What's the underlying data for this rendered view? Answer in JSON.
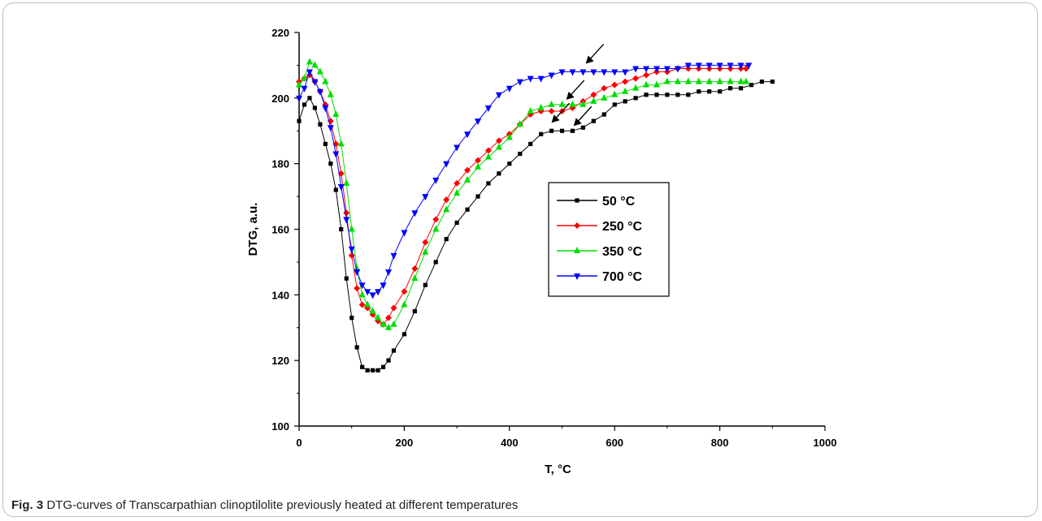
{
  "caption": {
    "label": "Fig. 3",
    "text": "DTG-curves of Transcarpathian clinoptilolite previously heated at different temperatures"
  },
  "chart_data": {
    "type": "line",
    "title": "",
    "xlabel": "T, °C",
    "ylabel": "DTG, a.u.",
    "xlim": [
      0,
      1000
    ],
    "ylim": [
      100,
      220
    ],
    "xticks": [
      0,
      200,
      400,
      600,
      800,
      1000
    ],
    "yticks": [
      100,
      120,
      140,
      160,
      180,
      200,
      220
    ],
    "grid": false,
    "legend_position": "center-right",
    "series": [
      {
        "name": "50 °C",
        "color": "#000000",
        "marker": "square",
        "points": [
          [
            0,
            193
          ],
          [
            10,
            198
          ],
          [
            20,
            200
          ],
          [
            30,
            197
          ],
          [
            40,
            192
          ],
          [
            50,
            186
          ],
          [
            60,
            180
          ],
          [
            70,
            172
          ],
          [
            80,
            160
          ],
          [
            90,
            145
          ],
          [
            100,
            133
          ],
          [
            110,
            124
          ],
          [
            120,
            118
          ],
          [
            130,
            117
          ],
          [
            140,
            117
          ],
          [
            150,
            117
          ],
          [
            160,
            118
          ],
          [
            170,
            120
          ],
          [
            180,
            123
          ],
          [
            200,
            128
          ],
          [
            220,
            135
          ],
          [
            240,
            143
          ],
          [
            260,
            150
          ],
          [
            280,
            157
          ],
          [
            300,
            162
          ],
          [
            320,
            166
          ],
          [
            340,
            170
          ],
          [
            360,
            174
          ],
          [
            380,
            177
          ],
          [
            400,
            180
          ],
          [
            420,
            183
          ],
          [
            440,
            186
          ],
          [
            460,
            189
          ],
          [
            480,
            190
          ],
          [
            500,
            190
          ],
          [
            520,
            190
          ],
          [
            540,
            191
          ],
          [
            560,
            193
          ],
          [
            580,
            195
          ],
          [
            600,
            198
          ],
          [
            620,
            199
          ],
          [
            640,
            200
          ],
          [
            660,
            201
          ],
          [
            680,
            201
          ],
          [
            700,
            201
          ],
          [
            720,
            201
          ],
          [
            740,
            201
          ],
          [
            760,
            202
          ],
          [
            780,
            202
          ],
          [
            800,
            202
          ],
          [
            820,
            203
          ],
          [
            840,
            203
          ],
          [
            860,
            204
          ],
          [
            880,
            205
          ],
          [
            900,
            205
          ]
        ]
      },
      {
        "name": "250 °C",
        "color": "#ff0000",
        "marker": "diamond",
        "points": [
          [
            0,
            205
          ],
          [
            10,
            206
          ],
          [
            20,
            207
          ],
          [
            30,
            205
          ],
          [
            40,
            202
          ],
          [
            50,
            198
          ],
          [
            60,
            193
          ],
          [
            70,
            186
          ],
          [
            80,
            177
          ],
          [
            90,
            165
          ],
          [
            100,
            152
          ],
          [
            110,
            142
          ],
          [
            120,
            137
          ],
          [
            130,
            136
          ],
          [
            140,
            134
          ],
          [
            150,
            132
          ],
          [
            160,
            131
          ],
          [
            170,
            133
          ],
          [
            180,
            136
          ],
          [
            200,
            141
          ],
          [
            220,
            148
          ],
          [
            240,
            156
          ],
          [
            260,
            163
          ],
          [
            280,
            169
          ],
          [
            300,
            174
          ],
          [
            320,
            178
          ],
          [
            340,
            181
          ],
          [
            360,
            184
          ],
          [
            380,
            187
          ],
          [
            400,
            189
          ],
          [
            420,
            192
          ],
          [
            440,
            195
          ],
          [
            460,
            196
          ],
          [
            480,
            196
          ],
          [
            500,
            196
          ],
          [
            520,
            197
          ],
          [
            540,
            199
          ],
          [
            560,
            201
          ],
          [
            580,
            203
          ],
          [
            600,
            204
          ],
          [
            620,
            205
          ],
          [
            640,
            206
          ],
          [
            660,
            207
          ],
          [
            680,
            208
          ],
          [
            700,
            208
          ],
          [
            720,
            209
          ],
          [
            740,
            209
          ],
          [
            760,
            209
          ],
          [
            780,
            209
          ],
          [
            800,
            209
          ],
          [
            820,
            209
          ],
          [
            840,
            209
          ],
          [
            850,
            209
          ]
        ]
      },
      {
        "name": "350 °C",
        "color": "#00dd00",
        "marker": "triangle-up",
        "points": [
          [
            0,
            204
          ],
          [
            10,
            206
          ],
          [
            20,
            211
          ],
          [
            30,
            210
          ],
          [
            40,
            208
          ],
          [
            50,
            205
          ],
          [
            60,
            201
          ],
          [
            70,
            195
          ],
          [
            80,
            186
          ],
          [
            90,
            174
          ],
          [
            100,
            160
          ],
          [
            110,
            148
          ],
          [
            120,
            140
          ],
          [
            130,
            137
          ],
          [
            140,
            135
          ],
          [
            150,
            133
          ],
          [
            160,
            131
          ],
          [
            170,
            130
          ],
          [
            180,
            131
          ],
          [
            200,
            137
          ],
          [
            220,
            145
          ],
          [
            240,
            153
          ],
          [
            260,
            160
          ],
          [
            280,
            166
          ],
          [
            300,
            171
          ],
          [
            320,
            175
          ],
          [
            340,
            179
          ],
          [
            360,
            182
          ],
          [
            380,
            185
          ],
          [
            400,
            188
          ],
          [
            420,
            192
          ],
          [
            440,
            196
          ],
          [
            460,
            197
          ],
          [
            480,
            198
          ],
          [
            500,
            198
          ],
          [
            520,
            198
          ],
          [
            540,
            198
          ],
          [
            560,
            199
          ],
          [
            580,
            200
          ],
          [
            600,
            201
          ],
          [
            620,
            202
          ],
          [
            640,
            203
          ],
          [
            660,
            204
          ],
          [
            680,
            204
          ],
          [
            700,
            205
          ],
          [
            720,
            205
          ],
          [
            740,
            205
          ],
          [
            760,
            205
          ],
          [
            780,
            205
          ],
          [
            800,
            205
          ],
          [
            820,
            205
          ],
          [
            840,
            205
          ],
          [
            850,
            205
          ]
        ]
      },
      {
        "name": "700 °C",
        "color": "#0000ff",
        "marker": "triangle-down",
        "points": [
          [
            0,
            200
          ],
          [
            10,
            203
          ],
          [
            20,
            208
          ],
          [
            30,
            205
          ],
          [
            40,
            202
          ],
          [
            50,
            197
          ],
          [
            60,
            191
          ],
          [
            70,
            183
          ],
          [
            80,
            173
          ],
          [
            90,
            163
          ],
          [
            100,
            154
          ],
          [
            110,
            147
          ],
          [
            120,
            143
          ],
          [
            130,
            141
          ],
          [
            140,
            140
          ],
          [
            150,
            141
          ],
          [
            160,
            143
          ],
          [
            170,
            147
          ],
          [
            180,
            152
          ],
          [
            200,
            159
          ],
          [
            220,
            165
          ],
          [
            240,
            170
          ],
          [
            260,
            175
          ],
          [
            280,
            180
          ],
          [
            300,
            185
          ],
          [
            320,
            189
          ],
          [
            340,
            193
          ],
          [
            360,
            197
          ],
          [
            380,
            201
          ],
          [
            400,
            203
          ],
          [
            420,
            205
          ],
          [
            440,
            206
          ],
          [
            460,
            206
          ],
          [
            480,
            207
          ],
          [
            500,
            208
          ],
          [
            520,
            208
          ],
          [
            540,
            208
          ],
          [
            560,
            208
          ],
          [
            580,
            208
          ],
          [
            600,
            208
          ],
          [
            620,
            208
          ],
          [
            640,
            209
          ],
          [
            660,
            209
          ],
          [
            680,
            209
          ],
          [
            700,
            209
          ],
          [
            720,
            209
          ],
          [
            740,
            210
          ],
          [
            760,
            210
          ],
          [
            780,
            210
          ],
          [
            800,
            210
          ],
          [
            820,
            210
          ],
          [
            840,
            210
          ],
          [
            855,
            210
          ]
        ]
      }
    ],
    "annotations": [
      {
        "type": "arrow",
        "x": 545,
        "y": 209
      },
      {
        "type": "arrow",
        "x": 508,
        "y": 198
      },
      {
        "type": "arrow",
        "x": 480,
        "y": 191
      },
      {
        "type": "arrow",
        "x": 522,
        "y": 190
      }
    ]
  }
}
